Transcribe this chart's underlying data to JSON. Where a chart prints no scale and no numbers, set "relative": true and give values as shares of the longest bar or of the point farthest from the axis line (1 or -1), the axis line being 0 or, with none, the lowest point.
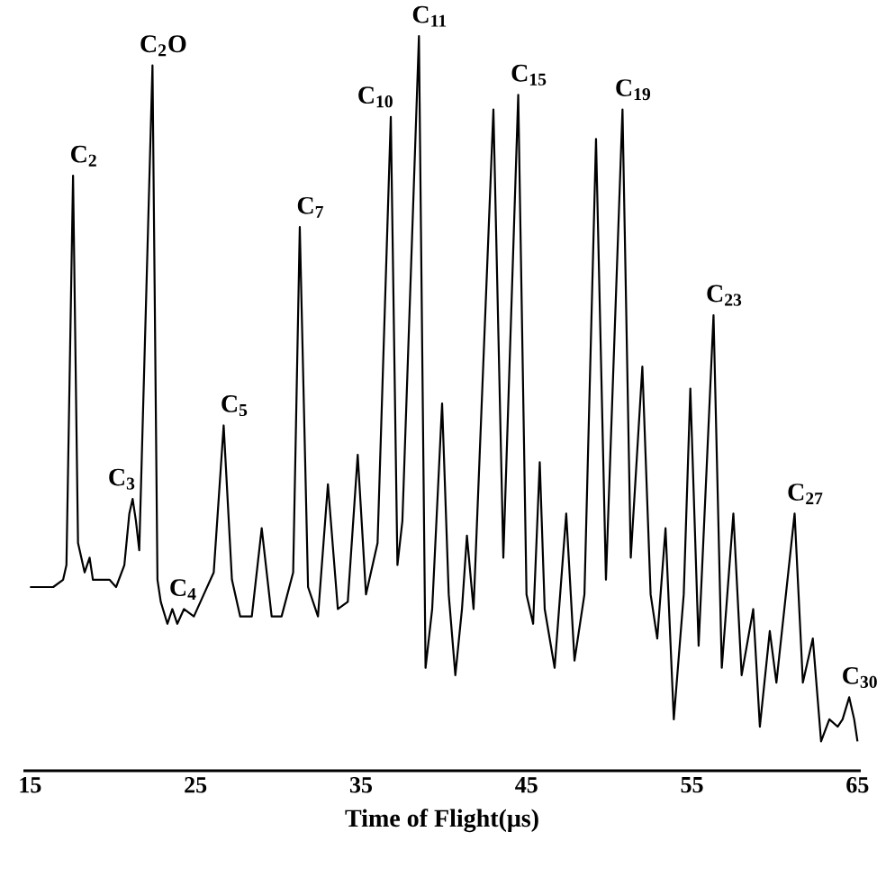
{
  "chart_data": {
    "type": "line",
    "relative": true,
    "xlabel": "Time of Flight(μs)",
    "xlim": [
      14.6,
      65.2
    ],
    "xticks": [
      15,
      25,
      35,
      45,
      55,
      65
    ],
    "marker": "none",
    "line_style": "solid",
    "series": [
      {
        "color": "#000000",
        "x": [
          15.0,
          15.9,
          16.4,
          17.0,
          17.2,
          17.6,
          17.9,
          18.3,
          18.6,
          18.8,
          19.2,
          19.8,
          20.2,
          20.7,
          21.0,
          21.2,
          21.4,
          21.6,
          22.4,
          22.7,
          22.9,
          23.3,
          23.6,
          23.9,
          24.3,
          24.9,
          25.5,
          26.1,
          26.7,
          27.2,
          27.7,
          28.4,
          29.0,
          29.6,
          30.2,
          30.9,
          31.3,
          31.8,
          32.4,
          33.0,
          33.6,
          34.2,
          34.8,
          35.3,
          36.0,
          36.8,
          37.2,
          37.5,
          38.5,
          38.9,
          39.3,
          39.9,
          40.3,
          40.7,
          41.1,
          41.4,
          41.8,
          43.0,
          43.6,
          44.5,
          45.0,
          45.4,
          45.8,
          46.1,
          46.7,
          47.4,
          47.9,
          48.5,
          49.2,
          49.8,
          50.8,
          51.3,
          52.0,
          52.5,
          52.9,
          53.4,
          53.9,
          54.5,
          54.9,
          55.4,
          56.3,
          56.8,
          57.5,
          58.0,
          58.7,
          59.1,
          59.7,
          60.1,
          61.2,
          61.7,
          62.3,
          62.8,
          63.3,
          63.8,
          64.1,
          64.5,
          64.8,
          65.0
        ],
        "values": [
          0.25,
          0.25,
          0.25,
          0.26,
          0.28,
          0.81,
          0.31,
          0.27,
          0.29,
          0.26,
          0.26,
          0.26,
          0.25,
          0.28,
          0.35,
          0.37,
          0.34,
          0.3,
          0.96,
          0.26,
          0.23,
          0.2,
          0.22,
          0.2,
          0.22,
          0.21,
          0.24,
          0.27,
          0.47,
          0.26,
          0.21,
          0.21,
          0.33,
          0.21,
          0.21,
          0.27,
          0.74,
          0.25,
          0.21,
          0.39,
          0.22,
          0.23,
          0.43,
          0.24,
          0.31,
          0.89,
          0.28,
          0.34,
          1.0,
          0.14,
          0.22,
          0.5,
          0.24,
          0.13,
          0.22,
          0.32,
          0.22,
          0.9,
          0.29,
          0.92,
          0.24,
          0.2,
          0.42,
          0.22,
          0.14,
          0.35,
          0.15,
          0.24,
          0.86,
          0.26,
          0.9,
          0.29,
          0.55,
          0.24,
          0.18,
          0.33,
          0.07,
          0.24,
          0.52,
          0.17,
          0.62,
          0.14,
          0.35,
          0.13,
          0.22,
          0.06,
          0.19,
          0.12,
          0.35,
          0.12,
          0.18,
          0.04,
          0.07,
          0.06,
          0.07,
          0.1,
          0.07,
          0.04
        ]
      }
    ],
    "annotations": [
      {
        "text": "C$_{2}$",
        "x": 17.6,
        "y": 0.81
      },
      {
        "text": "C$_{3}$",
        "x": 21.2,
        "y": 0.37
      },
      {
        "text": "C$_{2}$O",
        "x": 22.4,
        "y": 0.96
      },
      {
        "text": "C$_{4}$",
        "x": 23.6,
        "y": 0.22
      },
      {
        "text": "C$_{5}$",
        "x": 26.7,
        "y": 0.47
      },
      {
        "text": "C$_{7}$",
        "x": 31.3,
        "y": 0.74
      },
      {
        "text": "C$_{10}$",
        "x": 36.8,
        "y": 0.89
      },
      {
        "text": "C$_{11}$",
        "x": 38.5,
        "y": 1.0
      },
      {
        "text": "C$_{15}$",
        "x": 44.5,
        "y": 0.92
      },
      {
        "text": "C$_{19}$",
        "x": 50.8,
        "y": 0.9
      },
      {
        "text": "C$_{23}$",
        "x": 56.3,
        "y": 0.62
      },
      {
        "text": "C$_{27}$",
        "x": 61.2,
        "y": 0.35
      },
      {
        "text": "C$_{30}$",
        "x": 64.5,
        "y": 0.1
      }
    ]
  }
}
